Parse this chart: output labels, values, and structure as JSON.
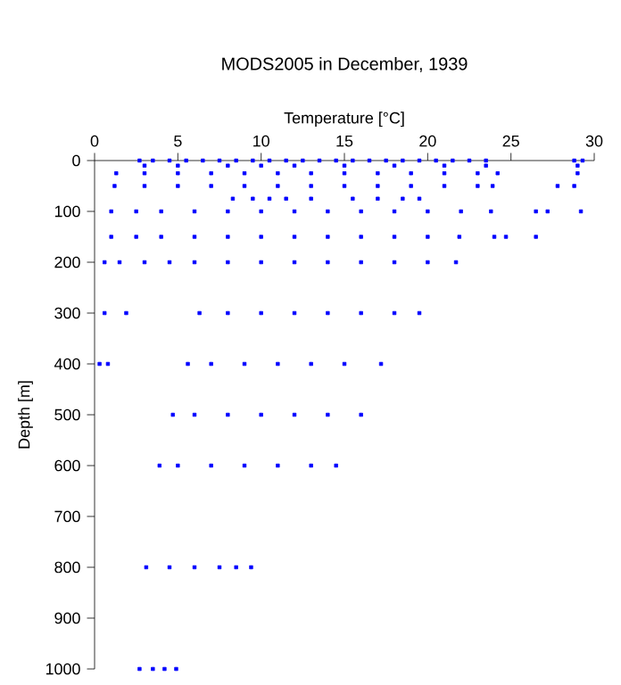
{
  "chart_data": {
    "type": "scatter",
    "title": "MODS2005 in December, 1939",
    "xlabel": "Temperature [°C]",
    "ylabel": "Depth [m]",
    "xlim": [
      0,
      30
    ],
    "ylim": [
      1000,
      0
    ],
    "xticks": [
      0,
      5,
      10,
      15,
      20,
      25,
      30
    ],
    "yticks": [
      0,
      100,
      200,
      300,
      400,
      500,
      600,
      700,
      800,
      900,
      1000
    ],
    "grid": false,
    "marker": "square",
    "series": [
      {
        "color": "#0000ff",
        "x": [
          2.7,
          3.5,
          4.5,
          5.5,
          6.5,
          7.5,
          8.5,
          9.5,
          10.5,
          11.5,
          12.5,
          13.5,
          14.5,
          15.5,
          16.5,
          17.5,
          18.5,
          19.5,
          20.5,
          21.5,
          22.5,
          23.5,
          28.8,
          29.3,
          3,
          5,
          8,
          10,
          12,
          15,
          18,
          21,
          23.5,
          29,
          1.3,
          3,
          5,
          7,
          9,
          11,
          13,
          15,
          17,
          19,
          21,
          23,
          24.2,
          29,
          1.2,
          3,
          5,
          7,
          9,
          11,
          13,
          15,
          17,
          19,
          21,
          23,
          23.9,
          27.8,
          28.8,
          8.3,
          9.5,
          10.5,
          11.5,
          13,
          15.5,
          17,
          18.5,
          19.5,
          1,
          2.5,
          4,
          6,
          8,
          10,
          12,
          14,
          16,
          18,
          20,
          22,
          23.8,
          26.5,
          27.2,
          29.2,
          1,
          2.5,
          4,
          6,
          8,
          10,
          12,
          14,
          16,
          18,
          20,
          21.9,
          24,
          24.7,
          26.5,
          0.6,
          1.5,
          3,
          4.5,
          6,
          8,
          10,
          12,
          14,
          16,
          18,
          20,
          21.7,
          0.6,
          1.9,
          6.3,
          8,
          10,
          12,
          14,
          16,
          18,
          19.5,
          0.3,
          0.8,
          5.6,
          7,
          9,
          11,
          13,
          15,
          17.2,
          4.7,
          6,
          8,
          10,
          12,
          14,
          16,
          3.9,
          5,
          7,
          9,
          11,
          13,
          14.5,
          3.1,
          4.5,
          6,
          7.5,
          8.5,
          9.4,
          2.7,
          3.5,
          4.2,
          4.9
        ],
        "values": [
          0,
          0,
          0,
          0,
          0,
          0,
          0,
          0,
          0,
          0,
          0,
          0,
          0,
          0,
          0,
          0,
          0,
          0,
          0,
          0,
          0,
          0,
          0,
          0,
          10,
          10,
          10,
          10,
          10,
          10,
          10,
          10,
          10,
          10,
          25,
          25,
          25,
          25,
          25,
          25,
          25,
          25,
          25,
          25,
          25,
          25,
          25,
          25,
          50,
          50,
          50,
          50,
          50,
          50,
          50,
          50,
          50,
          50,
          50,
          50,
          50,
          50,
          50,
          75,
          75,
          75,
          75,
          75,
          75,
          75,
          75,
          75,
          100,
          100,
          100,
          100,
          100,
          100,
          100,
          100,
          100,
          100,
          100,
          100,
          100,
          100,
          100,
          100,
          150,
          150,
          150,
          150,
          150,
          150,
          150,
          150,
          150,
          150,
          150,
          150,
          150,
          150,
          150,
          200,
          200,
          200,
          200,
          200,
          200,
          200,
          200,
          200,
          200,
          200,
          200,
          200,
          300,
          300,
          300,
          300,
          300,
          300,
          300,
          300,
          300,
          300,
          400,
          400,
          400,
          400,
          400,
          400,
          400,
          400,
          400,
          500,
          500,
          500,
          500,
          500,
          500,
          500,
          600,
          600,
          600,
          600,
          600,
          600,
          600,
          800,
          800,
          800,
          800,
          800,
          800,
          1000,
          1000,
          1000,
          1000
        ]
      }
    ]
  }
}
